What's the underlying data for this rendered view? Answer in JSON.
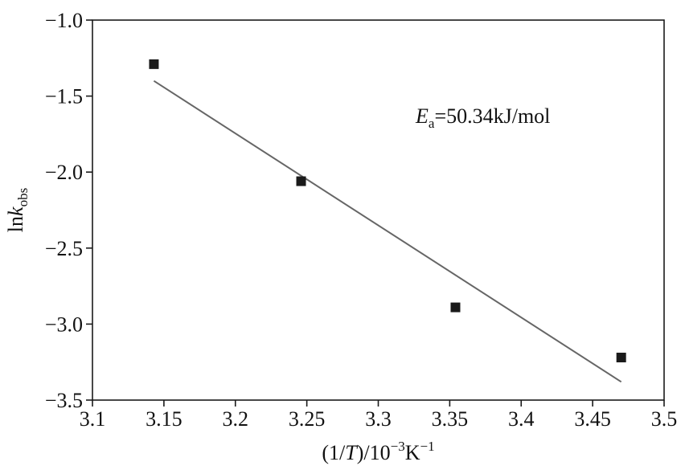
{
  "chart_data": {
    "type": "scatter",
    "title": "",
    "xlabel": {
      "prefix": "(1/",
      "italic": "T",
      "mid": ")/10",
      "sup": "−3",
      "unit": "K",
      "unit_sup": "−1"
    },
    "ylabel": {
      "prefix": "ln",
      "italic": "k",
      "sub": "obs"
    },
    "xlim": [
      3.1,
      3.5
    ],
    "ylim": [
      -3.5,
      -1.0
    ],
    "x_ticks": [
      3.1,
      3.15,
      3.2,
      3.25,
      3.3,
      3.35,
      3.4,
      3.45,
      3.5
    ],
    "x_tick_labels": [
      "3.1",
      "3.15",
      "3.2",
      "3.25",
      "3.3",
      "3.35",
      "3.4",
      "3.45",
      "3.5"
    ],
    "y_ticks": [
      -1.0,
      -1.5,
      -2.0,
      -2.5,
      -3.0,
      -3.5
    ],
    "y_tick_labels": [
      "−1.0",
      "−1.5",
      "−2.0",
      "−2.5",
      "−3.0",
      "−3.5"
    ],
    "grid": false,
    "series": [
      {
        "marker": "square",
        "color": "#1a1a1a",
        "points": [
          {
            "x": 3.143,
            "y": -1.29
          },
          {
            "x": 3.246,
            "y": -2.06
          },
          {
            "x": 3.354,
            "y": -2.89
          },
          {
            "x": 3.47,
            "y": -3.22
          }
        ]
      }
    ],
    "fit_line": {
      "color": "#666666",
      "points": [
        {
          "x": 3.143,
          "y": -1.4
        },
        {
          "x": 3.47,
          "y": -3.38
        }
      ]
    },
    "annotation": {
      "italic": "E",
      "sub": "a",
      "text": "=50.34kJ/mol"
    }
  }
}
